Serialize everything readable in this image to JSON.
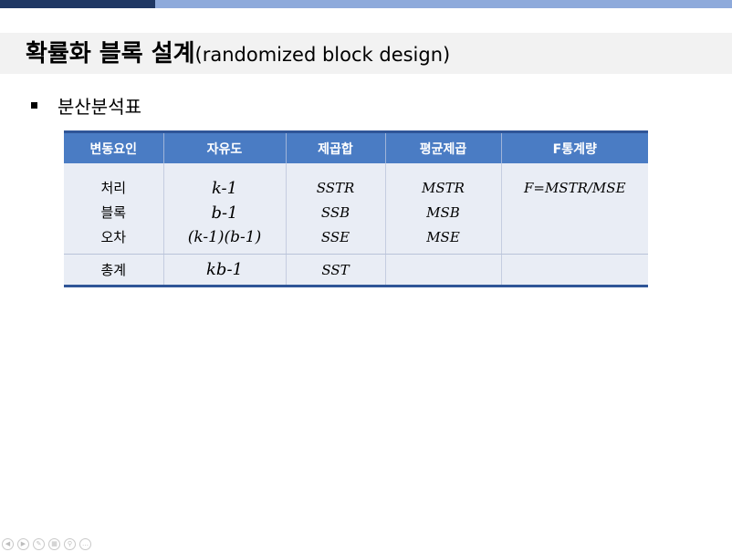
{
  "slide": {
    "title_main": "확률화 블록 설계",
    "title_sub": "(randomized block design)",
    "bullet": "분산분석표"
  },
  "table": {
    "headers": [
      "변동요인",
      "자유도",
      "제곱합",
      "평균제곱",
      "F통계량"
    ],
    "sources": [
      "처리",
      "블록",
      "오차"
    ],
    "dfs": [
      "k-1",
      "b-1",
      "(k-1)(b-1)"
    ],
    "ss": [
      "SSTR",
      "SSB",
      "SSE"
    ],
    "ms": [
      "MSTR",
      "MSB",
      "MSE"
    ],
    "f": "F=MSTR/MSE",
    "total": {
      "source": "총계",
      "df": "kb-1",
      "ss": "SST",
      "ms": "",
      "f": ""
    }
  },
  "colors": {
    "header_bg": "#4a7cc4",
    "table_border": "#2f5597",
    "cell_bg": "#e9edf5",
    "topbar_dark": "#1f3864",
    "topbar_light": "#8eaadb"
  },
  "icons": [
    "back-icon",
    "forward-icon",
    "pen-icon",
    "slides-icon",
    "zoom-icon",
    "more-icon"
  ]
}
